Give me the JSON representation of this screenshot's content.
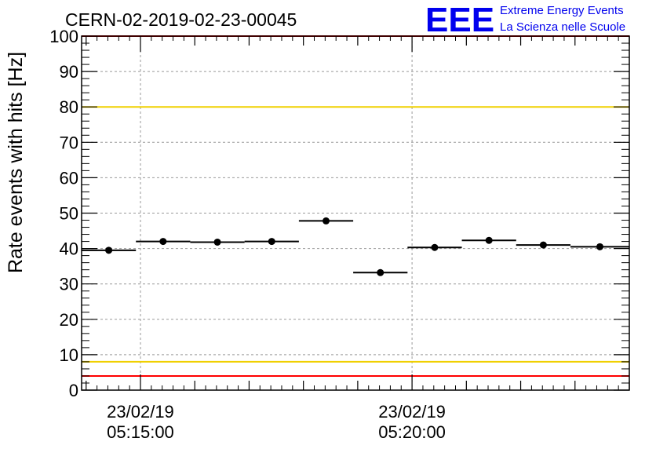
{
  "chart_data": {
    "type": "scatter",
    "title": "CERN-02-2019-02-23-00045",
    "xlabel": "",
    "ylabel": "Rate events with hits [Hz]",
    "ylim": [
      0,
      100
    ],
    "yticks": [
      0,
      10,
      20,
      30,
      40,
      50,
      60,
      70,
      80,
      90,
      100
    ],
    "xlim": [
      "23/02/19 05:13:55",
      "23/02/19 05:24:00"
    ],
    "xtick_labels": [
      {
        "time": "05:15:00",
        "date": "23/02/19",
        "seconds": 65
      },
      {
        "time": "05:20:00",
        "date": "23/02/19",
        "seconds": 365
      }
    ],
    "grid": true,
    "reference_lines": [
      {
        "y": 100,
        "color": "#ff0000"
      },
      {
        "y": 80,
        "color": "#f0d000"
      },
      {
        "y": 8,
        "color": "#f0d000"
      },
      {
        "y": 4,
        "color": "#ff0000"
      }
    ],
    "series": [
      {
        "marker_color": "#000000",
        "points": [
          {
            "x_start": "05:13:55",
            "x_end": "05:14:55",
            "y": 39.5
          },
          {
            "x_start": "05:14:55",
            "x_end": "05:15:55",
            "y": 42.0
          },
          {
            "x_start": "05:15:55",
            "x_end": "05:16:55",
            "y": 41.8
          },
          {
            "x_start": "05:16:55",
            "x_end": "05:17:55",
            "y": 42.0
          },
          {
            "x_start": "05:17:55",
            "x_end": "05:18:55",
            "y": 47.8
          },
          {
            "x_start": "05:18:55",
            "x_end": "05:19:55",
            "y": 33.2
          },
          {
            "x_start": "05:19:55",
            "x_end": "05:20:55",
            "y": 40.3
          },
          {
            "x_start": "05:20:55",
            "x_end": "05:21:55",
            "y": 42.3
          },
          {
            "x_start": "05:21:55",
            "x_end": "05:22:55",
            "y": 41.0
          },
          {
            "x_start": "05:22:55",
            "x_end": "05:24:00",
            "y": 40.5
          }
        ]
      }
    ]
  },
  "logo": {
    "letters": "EEE",
    "line1": "Extreme Energy Events",
    "line2": "La Scienza nelle Scuole",
    "color": "#0000ee"
  }
}
